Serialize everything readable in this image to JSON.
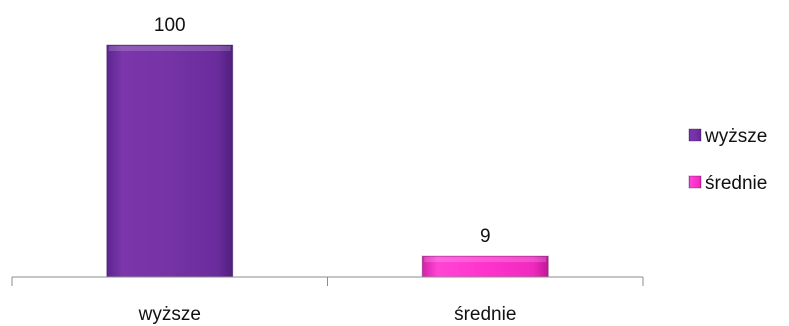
{
  "chart_data": {
    "type": "bar",
    "categories": [
      "wyższe",
      "średnie"
    ],
    "values": [
      100,
      9
    ],
    "colors": [
      "#7030a0",
      "#ff33cc"
    ],
    "title": "",
    "xlabel": "",
    "ylabel": "",
    "ylim": [
      0,
      100
    ],
    "grid": false,
    "legend_position": "right",
    "legend": [
      {
        "label": "wyższe",
        "color": "#7030a0"
      },
      {
        "label": "średnie",
        "color": "#ff33cc"
      }
    ]
  }
}
